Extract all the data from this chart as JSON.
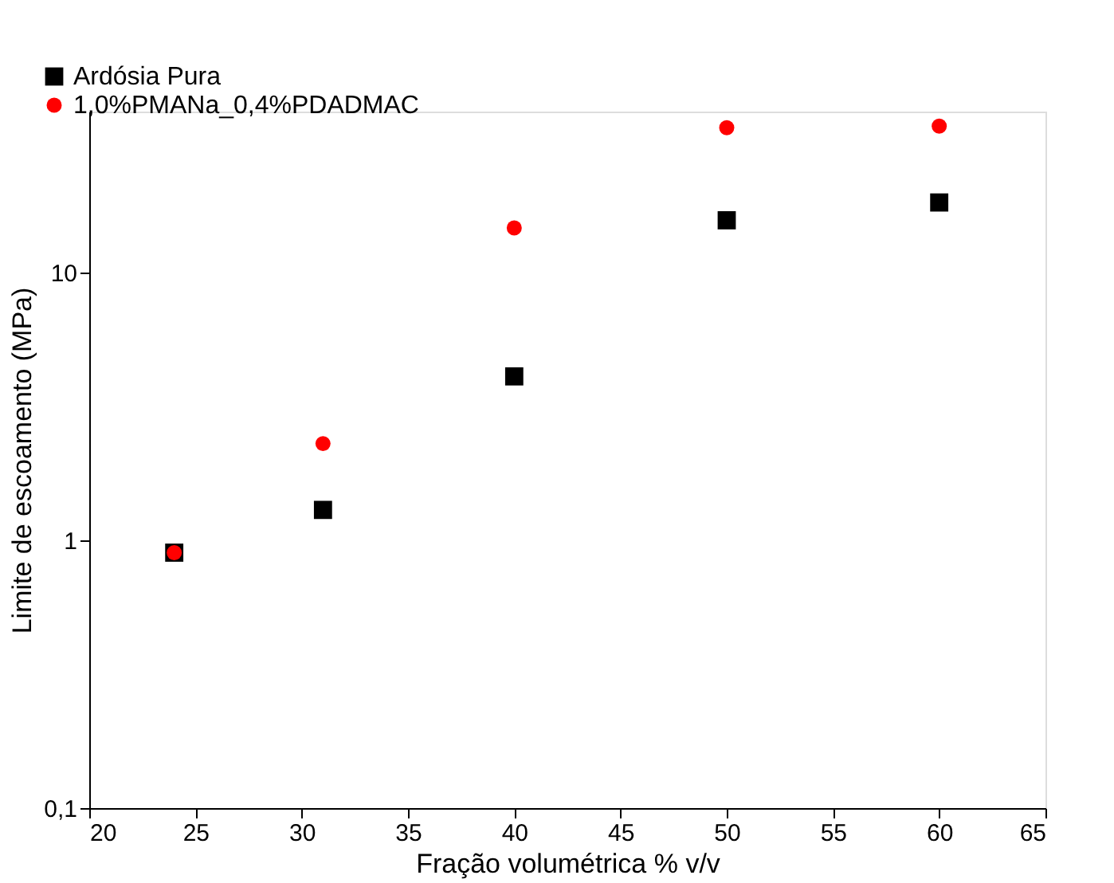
{
  "chart_data": {
    "type": "scatter",
    "xlabel": "Fração volumétrica % v/v",
    "ylabel": "Limite de escoamento (MPa)",
    "x": [
      24,
      31,
      40,
      50,
      60
    ],
    "series": [
      {
        "name": "Ardósia Pura",
        "color": "#000000",
        "marker": "square",
        "values": [
          0.9,
          1.3,
          4.1,
          15.7,
          18.3
        ]
      },
      {
        "name": "1,0%PMANa_0,4%PDADMAC",
        "color": "#ff0000",
        "marker": "circle",
        "values": [
          0.9,
          2.3,
          14.7,
          34.8,
          35.3
        ]
      }
    ],
    "xlim": [
      20,
      65
    ],
    "xticks": [
      20,
      25,
      30,
      35,
      40,
      45,
      50,
      55,
      60,
      65
    ],
    "ylim": [
      0.1,
      40
    ],
    "yticks": [
      {
        "value": 0.1,
        "label": "0,1"
      },
      1,
      10
    ],
    "log": "y",
    "grid": false,
    "legend": "top left"
  }
}
